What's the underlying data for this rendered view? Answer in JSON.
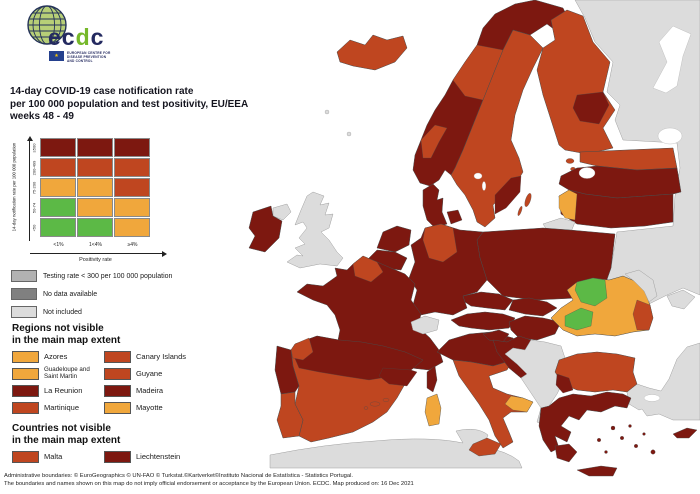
{
  "colors": {
    "dark_red": "#7d1810",
    "red": "#bf4620",
    "orange": "#f0a73c",
    "green": "#5cb946",
    "testing_gray": "#b2b2b2",
    "no_data_gray": "#808080",
    "not_included": "#dcdcdc",
    "sea": "#ffffff",
    "title_color": "#14141e",
    "logo_navy": "#242a60",
    "logo_green": "#76b82a"
  },
  "logo": {
    "wordmark_prefix": "ec",
    "wordmark_d": "d",
    "wordmark_suffix": "c",
    "flag_star": "★",
    "org_lines": [
      "EUROPEAN CENTRE FOR",
      "DISEASE PREVENTION",
      "AND CONTROL"
    ]
  },
  "title": {
    "line1": "14-day COVID-19 case notification rate",
    "line2": "per 100 000 population and test positivity, EU/EEA",
    "line3": "weeks 48 - 49"
  },
  "matrix": {
    "y_axis_label": "14-day notification rate per 100 000 population",
    "x_axis_label": "Positivity rate",
    "row_labels": [
      "≥500",
      "200-499",
      "75-200",
      "50-74",
      "<50"
    ],
    "col_labels": [
      "<1%",
      "1<4%",
      "≥4%"
    ],
    "cells": [
      [
        "dark_red",
        "dark_red",
        "dark_red"
      ],
      [
        "red",
        "red",
        "red"
      ],
      [
        "orange",
        "orange",
        "red"
      ],
      [
        "green",
        "orange",
        "orange"
      ],
      [
        "green",
        "green",
        "orange"
      ]
    ]
  },
  "testing_legend": {
    "items": [
      {
        "label": "Testing rate < 300 per 100 000 population",
        "color": "testing_gray"
      },
      {
        "label": "No data available",
        "color": "no_data_gray"
      },
      {
        "label": "Not included",
        "color": "not_included"
      }
    ]
  },
  "regions_section": {
    "heading1": "Regions not visible",
    "heading2": "in the main map extent",
    "items": [
      {
        "label": "Azores",
        "color": "orange"
      },
      {
        "label": "Canary Islands",
        "color": "red"
      },
      {
        "label": "Guadeloupe and Saint Martin",
        "color": "orange"
      },
      {
        "label": "Guyane",
        "color": "red"
      },
      {
        "label": "La Reunion",
        "color": "dark_red"
      },
      {
        "label": "Madeira",
        "color": "dark_red"
      },
      {
        "label": "Martinique",
        "color": "red"
      },
      {
        "label": "Mayotte",
        "color": "orange"
      }
    ]
  },
  "countries_section": {
    "heading1": "Countries not visible",
    "heading2": "in the main map extent",
    "items": [
      {
        "label": "Malta",
        "color": "red"
      },
      {
        "label": "Liechtenstein",
        "color": "dark_red"
      }
    ]
  },
  "footer": {
    "line1": "Administrative boundaries: © EuroGeographics © UN-FAO © Turkstat.©Kartverket©Instituto Nacional de Estatística - Statistics Portugal.",
    "line2": "The boundaries and names shown on this map do not imply official endorsement or acceptance by the European Union. ECDC. Map produced on: 16 Dec 2021"
  },
  "map": {
    "fills": {
      "russia": "not_included",
      "crimea": "not_included",
      "africa": "not_included",
      "turkey": "not_included",
      "uk": "not_included",
      "northern_ireland": "not_included",
      "faroe": "not_included",
      "shetland": "not_included",
      "switzerland": "not_included",
      "balkans": "not_included",
      "kaliningrad": "not_included",
      "moldova": "not_included",
      "iceland": "red",
      "ireland": "dark_red",
      "norway": "dark_red",
      "norway_mid": "red",
      "norway_west": "red",
      "sweden": "red",
      "sweden_southeast": "dark_red",
      "gotland": "red",
      "oland": "red",
      "finland": "red",
      "finland_central": "dark_red",
      "denmark": "dark_red",
      "denmark_islands": "dark_red",
      "estonia": "red",
      "estonia_islands": "red",
      "latvia": "dark_red",
      "lithuania": "dark_red",
      "lithuania_west": "orange",
      "poland": "dark_red",
      "germany": "dark_red",
      "germany_north": "red",
      "netherlands": "dark_red",
      "belgium": "dark_red",
      "france": "dark_red",
      "france_north": "red",
      "corsica": "dark_red",
      "italy": "red",
      "italy_north": "dark_red",
      "puglia": "orange",
      "sardinia": "orange",
      "sicily": "red",
      "austria": "dark_red",
      "czechia": "dark_red",
      "slovakia": "dark_red",
      "hungary": "dark_red",
      "slovenia": "dark_red",
      "croatia": "dark_red",
      "romania": "orange",
      "romania_green_north": "green",
      "romania_green_center": "green",
      "romania_coast": "red",
      "bulgaria": "red",
      "bulgaria_southwest": "dark_red",
      "greece": "dark_red",
      "peloponnese": "dark_red",
      "crete": "dark_red",
      "aegean_islands": "dark_red",
      "cyprus": "dark_red",
      "spain": "red",
      "spain_north": "dark_red",
      "spain_northeast": "dark_red",
      "spain_galicia": "red",
      "balearics": "red",
      "portugal_north": "dark_red",
      "portugal_south": "red"
    }
  }
}
